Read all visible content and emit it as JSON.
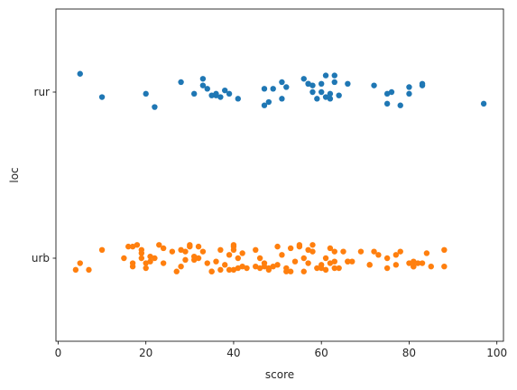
{
  "chart_data": {
    "type": "scatter",
    "variant": "strip",
    "xlabel": "score",
    "ylabel": "loc",
    "xlim": [
      -0.5,
      101.5
    ],
    "xticks": [
      0,
      20,
      40,
      60,
      80,
      100
    ],
    "categories": [
      "rur",
      "urb"
    ],
    "grid": false,
    "legend": "none",
    "series": [
      {
        "category": "rur",
        "color": "#1f77b4",
        "points": [
          [
            5,
            -0.11
          ],
          [
            10,
            0.03
          ],
          [
            20,
            0.01
          ],
          [
            22,
            0.09
          ],
          [
            28,
            -0.06
          ],
          [
            31,
            0.01
          ],
          [
            33,
            -0.08
          ],
          [
            33,
            -0.04
          ],
          [
            34,
            -0.02
          ],
          [
            35,
            0.02
          ],
          [
            36,
            0.02
          ],
          [
            36,
            0.01
          ],
          [
            37,
            0.03
          ],
          [
            38,
            -0.01
          ],
          [
            39,
            0.01
          ],
          [
            41,
            0.04
          ],
          [
            47,
            -0.02
          ],
          [
            47,
            0.08
          ],
          [
            48,
            0.06
          ],
          [
            49,
            -0.02
          ],
          [
            51,
            0.04
          ],
          [
            51,
            -0.06
          ],
          [
            52,
            -0.03
          ],
          [
            56,
            -0.08
          ],
          [
            57,
            -0.05
          ],
          [
            57,
            -0.05
          ],
          [
            58,
            0.0
          ],
          [
            58,
            -0.04
          ],
          [
            59,
            0.04
          ],
          [
            60,
            -0.05
          ],
          [
            60,
            0.0
          ],
          [
            61,
            0.03
          ],
          [
            61,
            -0.1
          ],
          [
            62,
            0.01
          ],
          [
            62,
            0.04
          ],
          [
            63,
            -0.1
          ],
          [
            63,
            -0.06
          ],
          [
            64,
            0.02
          ],
          [
            66,
            -0.05
          ],
          [
            72,
            -0.04
          ],
          [
            75,
            0.01
          ],
          [
            75,
            0.07
          ],
          [
            76,
            0.0
          ],
          [
            78,
            0.08
          ],
          [
            80,
            -0.03
          ],
          [
            80,
            0.01
          ],
          [
            83,
            -0.05
          ],
          [
            83,
            -0.04
          ],
          [
            97,
            0.07
          ]
        ]
      },
      {
        "category": "urb",
        "color": "#ff7f0e",
        "points": [
          [
            4,
            0.07
          ],
          [
            5,
            0.03
          ],
          [
            7,
            0.07
          ],
          [
            10,
            -0.05
          ],
          [
            15,
            0.0
          ],
          [
            16,
            -0.07
          ],
          [
            17,
            0.03
          ],
          [
            17,
            0.05
          ],
          [
            17,
            -0.07
          ],
          [
            18,
            -0.08
          ],
          [
            19,
            -0.03
          ],
          [
            19,
            0.0
          ],
          [
            19,
            -0.05
          ],
          [
            20,
            0.03
          ],
          [
            20,
            0.06
          ],
          [
            21,
            -0.01
          ],
          [
            21,
            0.02
          ],
          [
            22,
            0.0
          ],
          [
            23,
            -0.08
          ],
          [
            24,
            0.03
          ],
          [
            24,
            -0.06
          ],
          [
            26,
            -0.04
          ],
          [
            27,
            0.08
          ],
          [
            28,
            0.05
          ],
          [
            28,
            -0.05
          ],
          [
            29,
            0.01
          ],
          [
            29,
            -0.04
          ],
          [
            30,
            -0.08
          ],
          [
            30,
            -0.07
          ],
          [
            31,
            -0.01
          ],
          [
            31,
            0.01
          ],
          [
            32,
            -0.07
          ],
          [
            32,
            0.0
          ],
          [
            33,
            -0.04
          ],
          [
            34,
            0.03
          ],
          [
            35,
            0.08
          ],
          [
            35,
            0.08
          ],
          [
            36,
            0.02
          ],
          [
            37,
            -0.05
          ],
          [
            37,
            0.07
          ],
          [
            38,
            0.04
          ],
          [
            39,
            0.07
          ],
          [
            39,
            -0.02
          ],
          [
            40,
            -0.07
          ],
          [
            40,
            -0.05
          ],
          [
            40,
            0.07
          ],
          [
            40,
            -0.08
          ],
          [
            41,
            0.06
          ],
          [
            41,
            0.0
          ],
          [
            42,
            -0.03
          ],
          [
            42,
            0.05
          ],
          [
            43,
            0.06
          ],
          [
            45,
            0.05
          ],
          [
            45,
            -0.05
          ],
          [
            46,
            0.0
          ],
          [
            46,
            0.06
          ],
          [
            47,
            0.05
          ],
          [
            47,
            0.03
          ],
          [
            48,
            0.07
          ],
          [
            48,
            0.06
          ],
          [
            49,
            0.05
          ],
          [
            50,
            0.04
          ],
          [
            50,
            -0.07
          ],
          [
            51,
            -0.02
          ],
          [
            52,
            0.08
          ],
          [
            52,
            0.06
          ],
          [
            53,
            -0.06
          ],
          [
            53,
            0.08
          ],
          [
            54,
            0.02
          ],
          [
            55,
            -0.07
          ],
          [
            55,
            -0.08
          ],
          [
            56,
            0.0
          ],
          [
            56,
            0.08
          ],
          [
            57,
            0.03
          ],
          [
            57,
            -0.05
          ],
          [
            58,
            -0.08
          ],
          [
            58,
            -0.04
          ],
          [
            59,
            0.06
          ],
          [
            60,
            0.04
          ],
          [
            60,
            0.06
          ],
          [
            61,
            0.07
          ],
          [
            61,
            0.0
          ],
          [
            62,
            -0.06
          ],
          [
            62,
            0.03
          ],
          [
            63,
            -0.04
          ],
          [
            63,
            0.02
          ],
          [
            63,
            0.06
          ],
          [
            64,
            0.06
          ],
          [
            65,
            -0.04
          ],
          [
            66,
            0.02
          ],
          [
            66,
            0.02
          ],
          [
            67,
            0.02
          ],
          [
            69,
            -0.04
          ],
          [
            71,
            0.04
          ],
          [
            71,
            0.04
          ],
          [
            72,
            -0.04
          ],
          [
            73,
            -0.02
          ],
          [
            75,
            0.06
          ],
          [
            75,
            0.0
          ],
          [
            77,
            0.04
          ],
          [
            77,
            -0.02
          ],
          [
            78,
            -0.04
          ],
          [
            80,
            0.03
          ],
          [
            81,
            0.05
          ],
          [
            81,
            0.05
          ],
          [
            81,
            0.02
          ],
          [
            82,
            0.03
          ],
          [
            83,
            0.03
          ],
          [
            84,
            -0.03
          ],
          [
            85,
            0.05
          ],
          [
            88,
            0.05
          ],
          [
            88,
            -0.05
          ]
        ]
      }
    ]
  }
}
